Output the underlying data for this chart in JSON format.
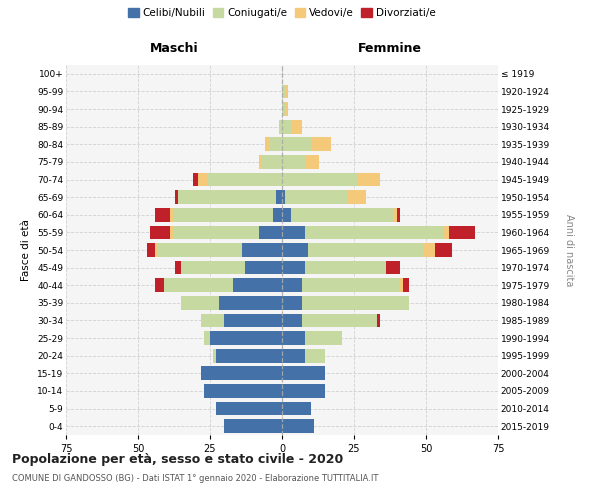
{
  "age_groups": [
    "0-4",
    "5-9",
    "10-14",
    "15-19",
    "20-24",
    "25-29",
    "30-34",
    "35-39",
    "40-44",
    "45-49",
    "50-54",
    "55-59",
    "60-64",
    "65-69",
    "70-74",
    "75-79",
    "80-84",
    "85-89",
    "90-94",
    "95-99",
    "100+"
  ],
  "birth_years": [
    "2015-2019",
    "2010-2014",
    "2005-2009",
    "2000-2004",
    "1995-1999",
    "1990-1994",
    "1985-1989",
    "1980-1984",
    "1975-1979",
    "1970-1974",
    "1965-1969",
    "1960-1964",
    "1955-1959",
    "1950-1954",
    "1945-1949",
    "1940-1944",
    "1935-1939",
    "1930-1934",
    "1925-1929",
    "1920-1924",
    "≤ 1919"
  ],
  "males": {
    "celibi": [
      20,
      23,
      27,
      28,
      23,
      25,
      20,
      22,
      17,
      13,
      14,
      8,
      3,
      2,
      0,
      0,
      0,
      0,
      0,
      0,
      0
    ],
    "coniugati": [
      0,
      0,
      0,
      0,
      1,
      2,
      8,
      13,
      24,
      22,
      29,
      30,
      35,
      34,
      26,
      7,
      4,
      1,
      0,
      0,
      0
    ],
    "vedovi": [
      0,
      0,
      0,
      0,
      0,
      0,
      0,
      0,
      0,
      0,
      1,
      1,
      1,
      0,
      3,
      1,
      2,
      0,
      0,
      0,
      0
    ],
    "divorziati": [
      0,
      0,
      0,
      0,
      0,
      0,
      0,
      0,
      3,
      2,
      3,
      7,
      5,
      1,
      2,
      0,
      0,
      0,
      0,
      0,
      0
    ]
  },
  "females": {
    "nubili": [
      11,
      10,
      15,
      15,
      8,
      8,
      7,
      7,
      7,
      8,
      9,
      8,
      3,
      1,
      0,
      0,
      0,
      0,
      0,
      0,
      0
    ],
    "coniugate": [
      0,
      0,
      0,
      0,
      7,
      13,
      26,
      37,
      34,
      28,
      40,
      48,
      36,
      22,
      26,
      8,
      10,
      3,
      1,
      1,
      0
    ],
    "vedove": [
      0,
      0,
      0,
      0,
      0,
      0,
      0,
      0,
      1,
      0,
      4,
      2,
      1,
      6,
      8,
      5,
      7,
      4,
      1,
      1,
      0
    ],
    "divorziate": [
      0,
      0,
      0,
      0,
      0,
      0,
      1,
      0,
      2,
      5,
      6,
      9,
      1,
      0,
      0,
      0,
      0,
      0,
      0,
      0,
      0
    ]
  },
  "colors": {
    "celibi": "#4472A8",
    "coniugati": "#C5D9A0",
    "vedovi": "#F5C97A",
    "divorziati": "#C0202A"
  },
  "xlim": 75,
  "title": "Popolazione per età, sesso e stato civile - 2020",
  "subtitle": "COMUNE DI GANDOSSO (BG) - Dati ISTAT 1° gennaio 2020 - Elaborazione TUTTITALIA.IT",
  "ylabel_left": "Fasce di età",
  "ylabel_right": "Anni di nascita",
  "xlabel_left": "Maschi",
  "xlabel_right": "Femmine",
  "bg_color": "#f5f5f5",
  "grid_color": "#cccccc"
}
